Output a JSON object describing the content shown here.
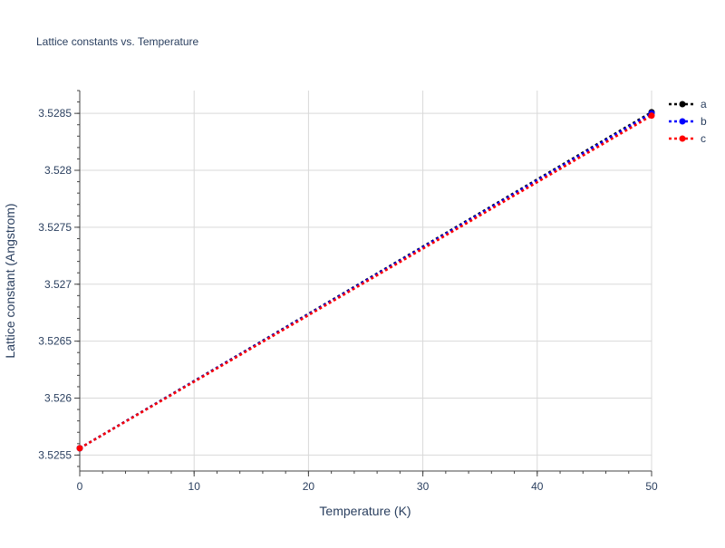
{
  "chart_data": {
    "type": "line",
    "title": "Lattice constants vs. Temperature",
    "xlabel": "Temperature (K)",
    "ylabel": "Lattice constant (Angstrom)",
    "xlim": [
      0,
      50
    ],
    "ylim": [
      3.52536,
      3.5287
    ],
    "xticks": [
      0,
      10,
      20,
      30,
      40,
      50
    ],
    "xtick_labels": [
      "0",
      "10",
      "20",
      "30",
      "40",
      "50"
    ],
    "yticks": [
      3.5255,
      3.526,
      3.5265,
      3.527,
      3.5275,
      3.528,
      3.5285
    ],
    "ytick_labels": [
      "3.5255",
      "3.526",
      "3.5265",
      "3.527",
      "3.5275",
      "3.528",
      "3.5285"
    ],
    "grid": true,
    "legend": "right",
    "series": [
      {
        "name": "a",
        "color": "#000000",
        "x": [
          0,
          50
        ],
        "y": [
          3.52556,
          3.52851
        ]
      },
      {
        "name": "b",
        "color": "#0000ff",
        "x": [
          0,
          50
        ],
        "y": [
          3.52556,
          3.5285
        ]
      },
      {
        "name": "c",
        "color": "#ff0000",
        "x": [
          0,
          50
        ],
        "y": [
          3.52556,
          3.52848
        ]
      }
    ]
  }
}
